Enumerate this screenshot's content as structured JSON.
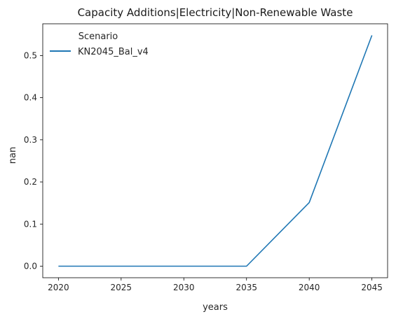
{
  "chart_data": {
    "type": "line",
    "title": "Capacity Additions|Electricity|Non-Renewable Waste",
    "xlabel": "years",
    "ylabel": "nan",
    "x": [
      2020,
      2025,
      2030,
      2035,
      2040,
      2045
    ],
    "series": [
      {
        "name": "KN2045_Bal_v4",
        "values": [
          0.0,
          0.0,
          0.0,
          0.0,
          0.151,
          0.548
        ],
        "color": "#1f77b4"
      }
    ],
    "xticks": [
      "2020",
      "2025",
      "2030",
      "2035",
      "2040",
      "2045"
    ],
    "yticks": [
      "0.0",
      "0.1",
      "0.2",
      "0.3",
      "0.4",
      "0.5"
    ],
    "xlim": [
      2018.75,
      2046.25
    ],
    "ylim": [
      -0.0274,
      0.5754
    ],
    "grid": false,
    "legend": {
      "title": "Scenario",
      "placement": "top-left"
    }
  }
}
